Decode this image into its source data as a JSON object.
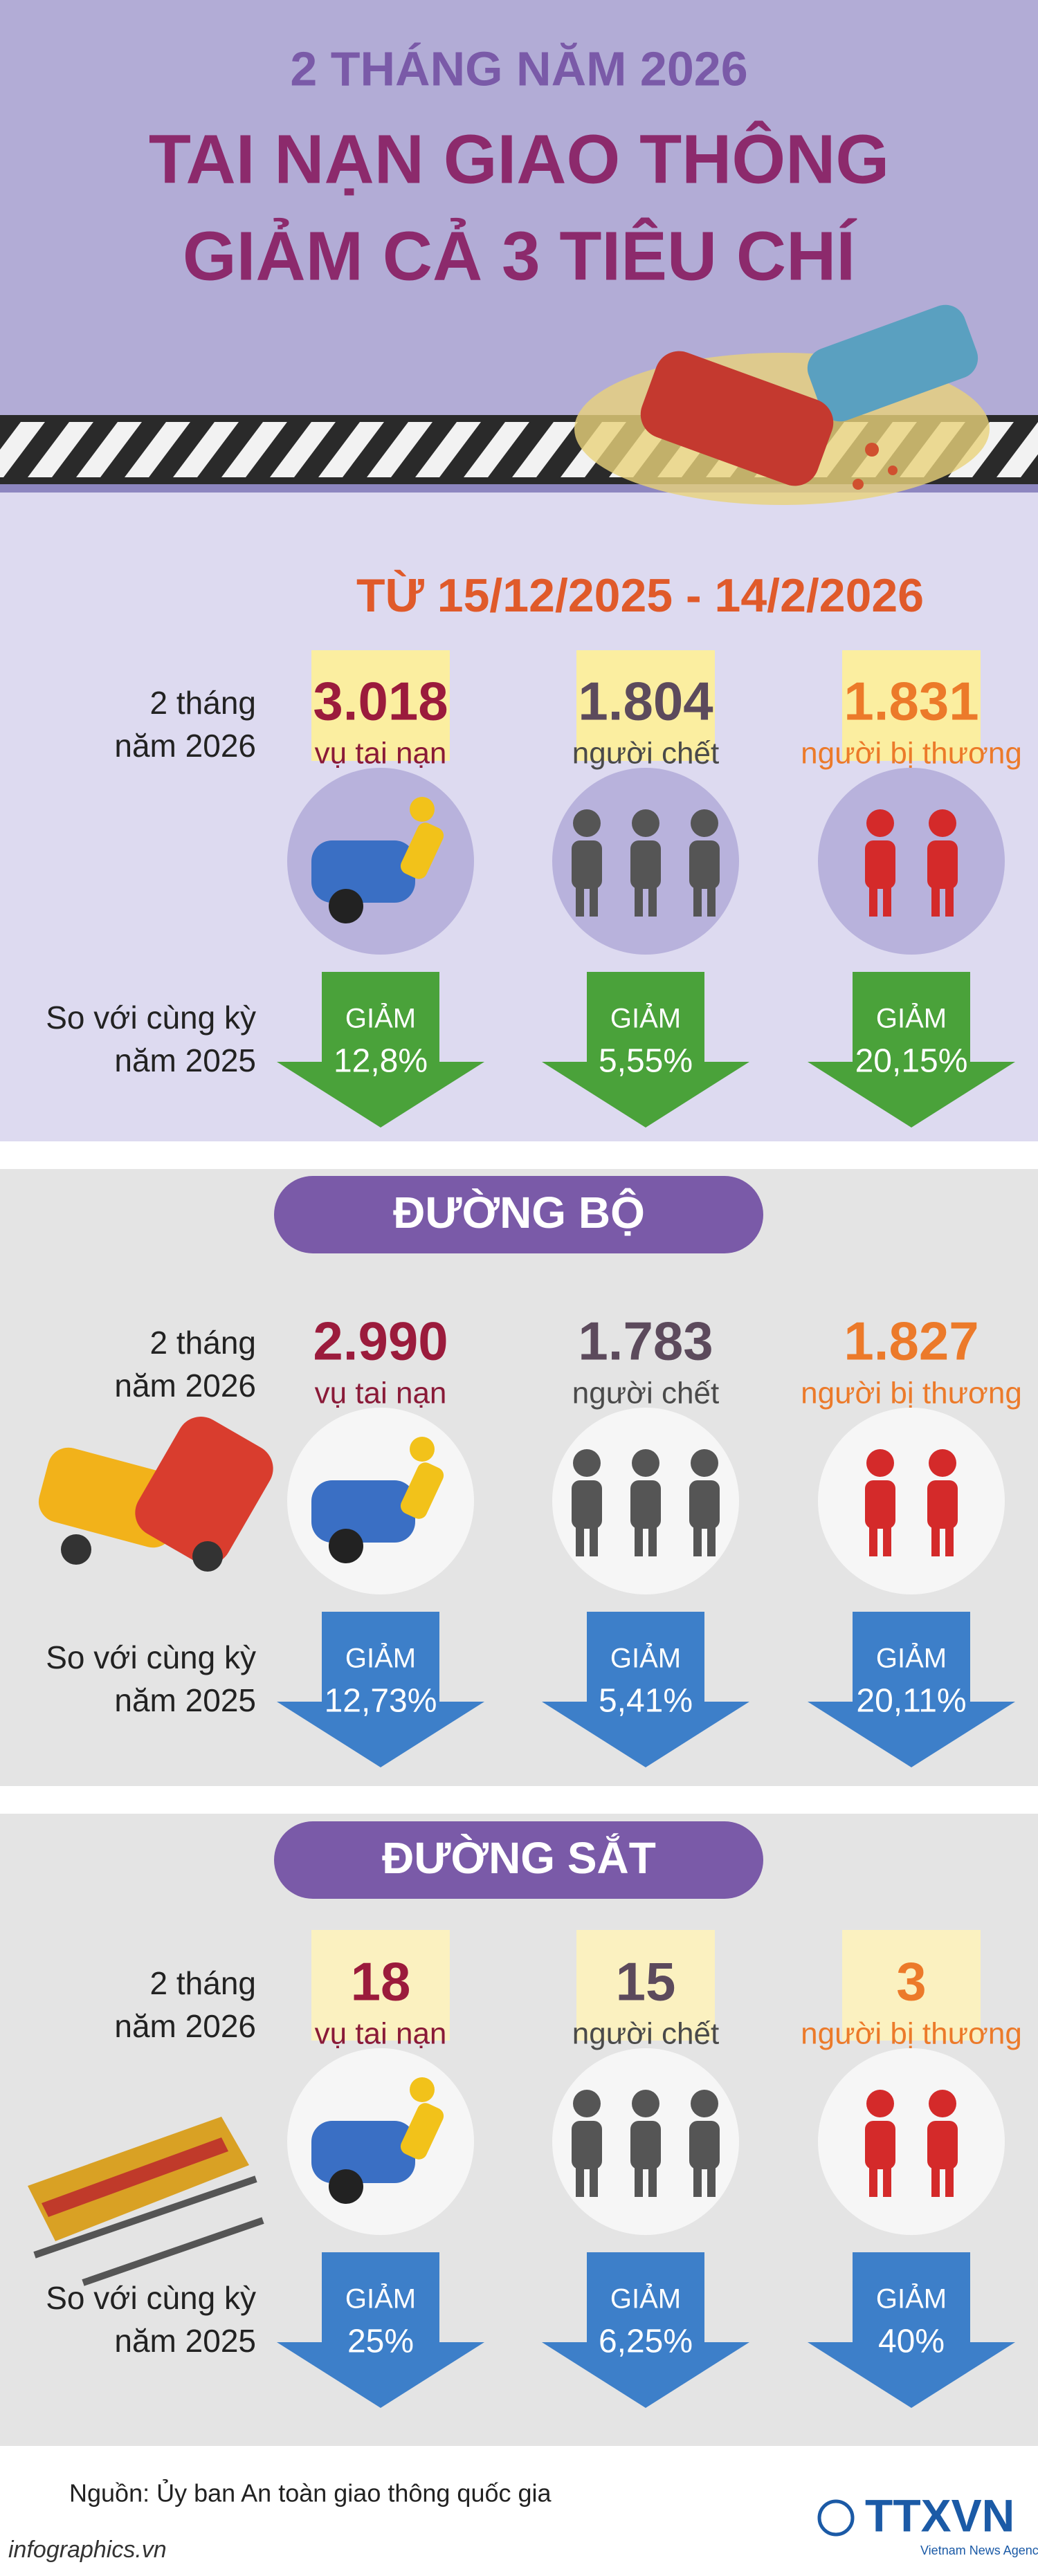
{
  "header": {
    "kicker": "2 THÁNG NĂM 2026",
    "title": [
      "TAI NẠN GIAO THÔNG",
      "GIẢM CẢ 3 TIÊU CHÍ"
    ]
  },
  "period": "TỪ 15/12/2025 - 14/2/2026",
  "sections": [
    {
      "row_labels": {
        "current": [
          "2 tháng",
          "năm 2026"
        ],
        "compare": [
          "So với cùng kỳ",
          "năm 2025"
        ]
      },
      "items": [
        {
          "value": "3.018",
          "label": "vụ tai nạn",
          "change_label": "GIẢM",
          "change": "12,8%"
        },
        {
          "value": "1.804",
          "label": "người chết",
          "change_label": "GIẢM",
          "change": "5,55%"
        },
        {
          "value": "1.831",
          "label": "người bị thương",
          "change_label": "GIẢM",
          "change": "20,15%"
        }
      ]
    },
    {
      "title": "ĐƯỜNG BỘ",
      "row_labels": {
        "current": [
          "2 tháng",
          "năm 2026"
        ],
        "compare": [
          "So với cùng kỳ",
          "năm 2025"
        ]
      },
      "items": [
        {
          "value": "2.990",
          "label": "vụ tai nạn",
          "change_label": "GIẢM",
          "change": "12,73%"
        },
        {
          "value": "1.783",
          "label": "người chết",
          "change_label": "GIẢM",
          "change": "5,41%"
        },
        {
          "value": "1.827",
          "label": "người bị thương",
          "change_label": "GIẢM",
          "change": "20,11%"
        }
      ]
    },
    {
      "title": "ĐƯỜNG SẮT",
      "row_labels": {
        "current": [
          "2 tháng",
          "năm 2026"
        ],
        "compare": [
          "So với cùng kỳ",
          "năm 2025"
        ]
      },
      "items": [
        {
          "value": "18",
          "label": "vụ tai nạn",
          "change_label": "GIẢM",
          "change": "25%"
        },
        {
          "value": "15",
          "label": "người chết",
          "change_label": "GIẢM",
          "change": "6,25%"
        },
        {
          "value": "3",
          "label": "người bị thương",
          "change_label": "GIẢM",
          "change": "40%"
        }
      ]
    }
  ],
  "footer": {
    "source": "Nguồn: Ủy ban An toàn giao thông quốc gia",
    "site": "infographics.vn",
    "brand": "TTXVN",
    "brand_sub": "Vietnam News Agency"
  }
}
